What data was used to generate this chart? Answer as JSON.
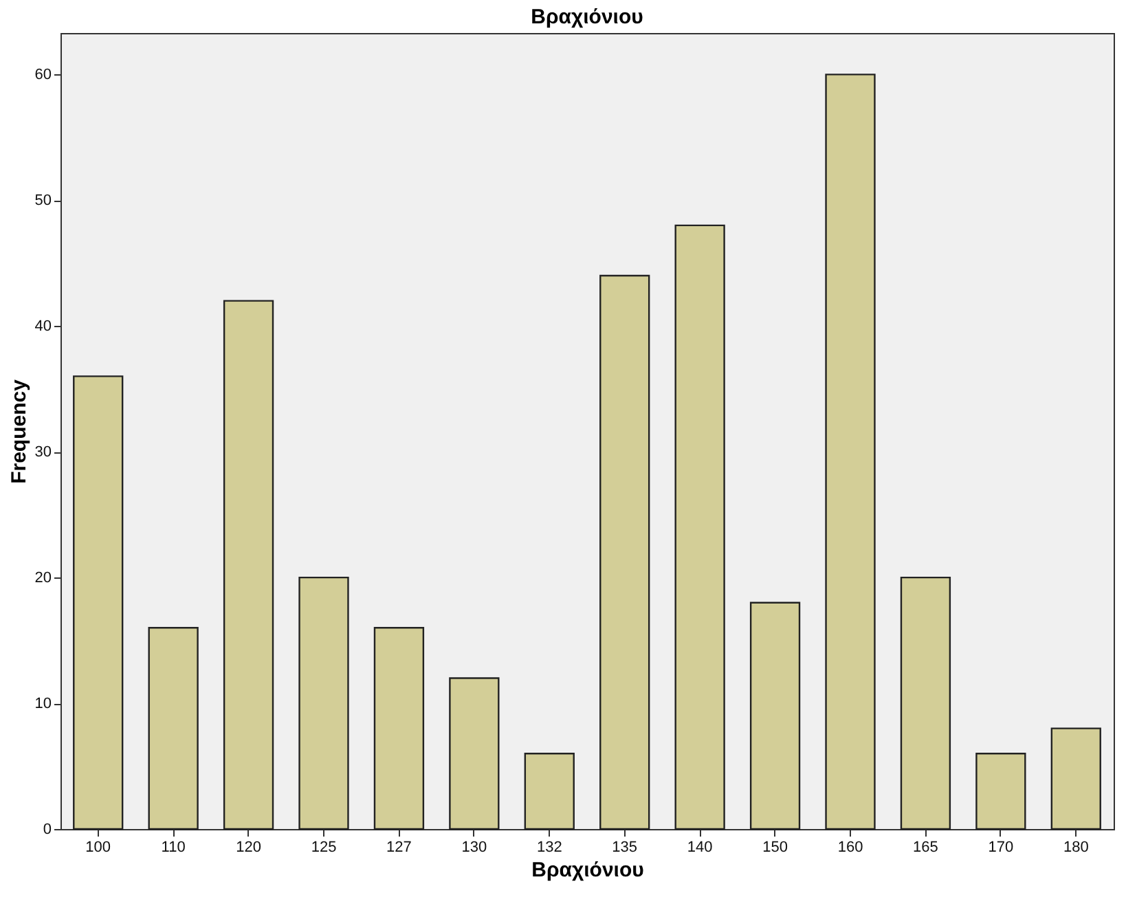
{
  "chart_data": {
    "type": "bar",
    "title": "Βραχιόνιου",
    "xlabel": "Βραχιόνιου",
    "ylabel": "Frequency",
    "categories": [
      "100",
      "110",
      "120",
      "125",
      "127",
      "130",
      "132",
      "135",
      "140",
      "150",
      "160",
      "165",
      "170",
      "180"
    ],
    "values": [
      36,
      16,
      42,
      20,
      16,
      12,
      6,
      44,
      48,
      18,
      60,
      20,
      6,
      8
    ],
    "color": "#d3ce97",
    "ylim": [
      0,
      63.3
    ],
    "yticks": [
      0,
      10,
      20,
      30,
      40,
      50,
      60
    ],
    "grid": false
  }
}
